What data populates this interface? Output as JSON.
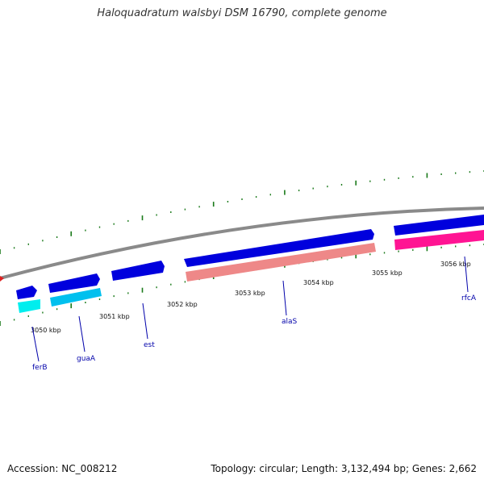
{
  "title": "Haloquadratum walsbyi DSM 16790, complete genome",
  "footer": {
    "accession": "Accession: NC_008212",
    "summary": "Topology: circular; Length: 3,132,494 bp; Genes: 2,662"
  },
  "colors": {
    "backbone": "#8a8a8a",
    "cds": "#0000dd",
    "trna": "#00e0ee",
    "rrna": "#ee8888",
    "misc": "#ff1493",
    "tick": "#1a7a1a",
    "gene_label": "#0000aa"
  },
  "scale_labels": [
    "3050 kbp",
    "3051 kbp",
    "3052 kbp",
    "3053 kbp",
    "3054 kbp",
    "3055 kbp",
    "3056 kbp"
  ],
  "gene_labels": [
    "ferB",
    "guaA",
    "est",
    "alaS",
    "rfcA"
  ]
}
